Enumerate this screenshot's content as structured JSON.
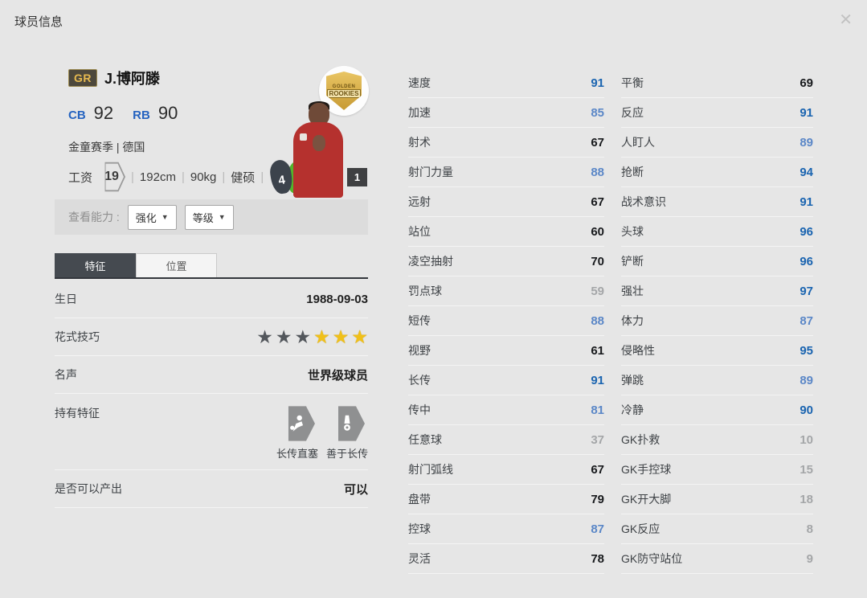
{
  "header": {
    "title": "球员信息",
    "close_glyph": "✕"
  },
  "colors": {
    "accent_blue_high": "#1a64b0",
    "accent_blue_mid": "#5b87c7",
    "low_gray": "#a4a6a8",
    "gold": "#f0c019",
    "foot_weak": "#3c434c",
    "foot_strong": "#52b42c",
    "badge_gold": "#e7ba50"
  },
  "player": {
    "badge": "GR",
    "name": "J.博阿滕",
    "positions": [
      {
        "pos": "CB",
        "rating": "92"
      },
      {
        "pos": "RB",
        "rating": "90"
      }
    ],
    "season_nation": "金童赛季 | 德国",
    "salary_label": "工资",
    "salary_value": "19",
    "divider": "|",
    "height": "192cm",
    "weight": "90kg",
    "body_type": "健硕",
    "weak_foot": "4",
    "strong_foot": "5",
    "photo_badge_line1": "GOLDEN",
    "photo_badge_line2": "ROOKIES",
    "photo_index": "1"
  },
  "ability_bar": {
    "label": "查看能力 :",
    "arrow": "▼",
    "dropdowns": [
      {
        "label": "强化"
      },
      {
        "label": "等级"
      }
    ]
  },
  "tabs": [
    {
      "label": "特征"
    },
    {
      "label": "位置"
    }
  ],
  "details": {
    "birthday_label": "生日",
    "birthday_value": "1988-09-03",
    "skill_label": "花式技巧",
    "stars_dark": 3,
    "stars_gold": 3,
    "star_glyph": "★",
    "fame_label": "名声",
    "fame_value": "世界级球员",
    "traits_label": "持有特征",
    "traits": [
      {
        "name": "长传直塞"
      },
      {
        "name": "善于长传"
      }
    ],
    "produce_label": "是否可以产出",
    "produce_value": "可以"
  },
  "stats": {
    "columns": [
      {
        "items": [
          {
            "label": "速度",
            "value": 91
          },
          {
            "label": "加速",
            "value": 85
          },
          {
            "label": "射术",
            "value": 67
          },
          {
            "label": "射门力量",
            "value": 88
          },
          {
            "label": "远射",
            "value": 67
          },
          {
            "label": "站位",
            "value": 60
          },
          {
            "label": "凌空抽射",
            "value": 70
          },
          {
            "label": "罚点球",
            "value": 59
          },
          {
            "label": "短传",
            "value": 88
          },
          {
            "label": "视野",
            "value": 61
          },
          {
            "label": "长传",
            "value": 91
          },
          {
            "label": "传中",
            "value": 81
          },
          {
            "label": "任意球",
            "value": 37
          },
          {
            "label": "射门弧线",
            "value": 67
          },
          {
            "label": "盘带",
            "value": 79
          },
          {
            "label": "控球",
            "value": 87
          },
          {
            "label": "灵活",
            "value": 78
          }
        ]
      },
      {
        "items": [
          {
            "label": "平衡",
            "value": 69
          },
          {
            "label": "反应",
            "value": 91
          },
          {
            "label": "人盯人",
            "value": 89
          },
          {
            "label": "抢断",
            "value": 94
          },
          {
            "label": "战术意识",
            "value": 91
          },
          {
            "label": "头球",
            "value": 96
          },
          {
            "label": "铲断",
            "value": 96
          },
          {
            "label": "强壮",
            "value": 97
          },
          {
            "label": "体力",
            "value": 87
          },
          {
            "label": "侵略性",
            "value": 95
          },
          {
            "label": "弹跳",
            "value": 89
          },
          {
            "label": "冷静",
            "value": 90
          },
          {
            "label": "GK扑救",
            "value": 10
          },
          {
            "label": "GK手控球",
            "value": 15
          },
          {
            "label": "GK开大脚",
            "value": 18
          },
          {
            "label": "GK反应",
            "value": 8
          },
          {
            "label": "GK防守站位",
            "value": 9
          }
        ]
      }
    ]
  }
}
